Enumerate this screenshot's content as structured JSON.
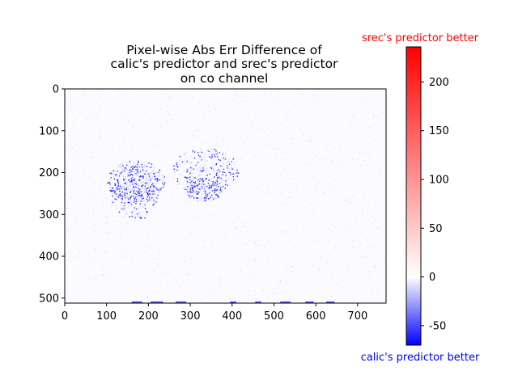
{
  "chart_data": {
    "type": "heatmap",
    "title_lines": [
      "Pixel-wise Abs Err Difference of",
      "calic's predictor and srec's predictor",
      "on co channel"
    ],
    "image": {
      "width": 768,
      "height": 512
    },
    "xlim": [
      0,
      768
    ],
    "ylim": [
      512,
      0
    ],
    "xticks": [
      0,
      100,
      200,
      300,
      400,
      500,
      600,
      700
    ],
    "yticks": [
      0,
      100,
      200,
      300,
      400,
      500
    ],
    "colorbar": {
      "colormap": "bwr",
      "range": [
        -70,
        236
      ],
      "ticks": [
        -50,
        0,
        50,
        100,
        150,
        200
      ],
      "label_top": "srec's predictor better",
      "label_bottom": "calic's predictor better",
      "label_top_color": "#ff0000",
      "label_bottom_color": "#0000ff"
    },
    "features": [
      {
        "kind": "blue_cluster",
        "cx": 170,
        "cy": 220,
        "rx": 70,
        "ry": 50,
        "density": 0.55
      },
      {
        "kind": "blue_cluster",
        "cx": 165,
        "cy": 250,
        "rx": 55,
        "ry": 65,
        "density": 0.3
      },
      {
        "kind": "blue_cluster",
        "cx": 335,
        "cy": 195,
        "rx": 80,
        "ry": 55,
        "density": 0.4
      },
      {
        "kind": "blue_cluster",
        "cx": 330,
        "cy": 240,
        "rx": 45,
        "ry": 30,
        "density": 0.25
      },
      {
        "kind": "bottom_row_blue",
        "y": 510
      }
    ]
  }
}
